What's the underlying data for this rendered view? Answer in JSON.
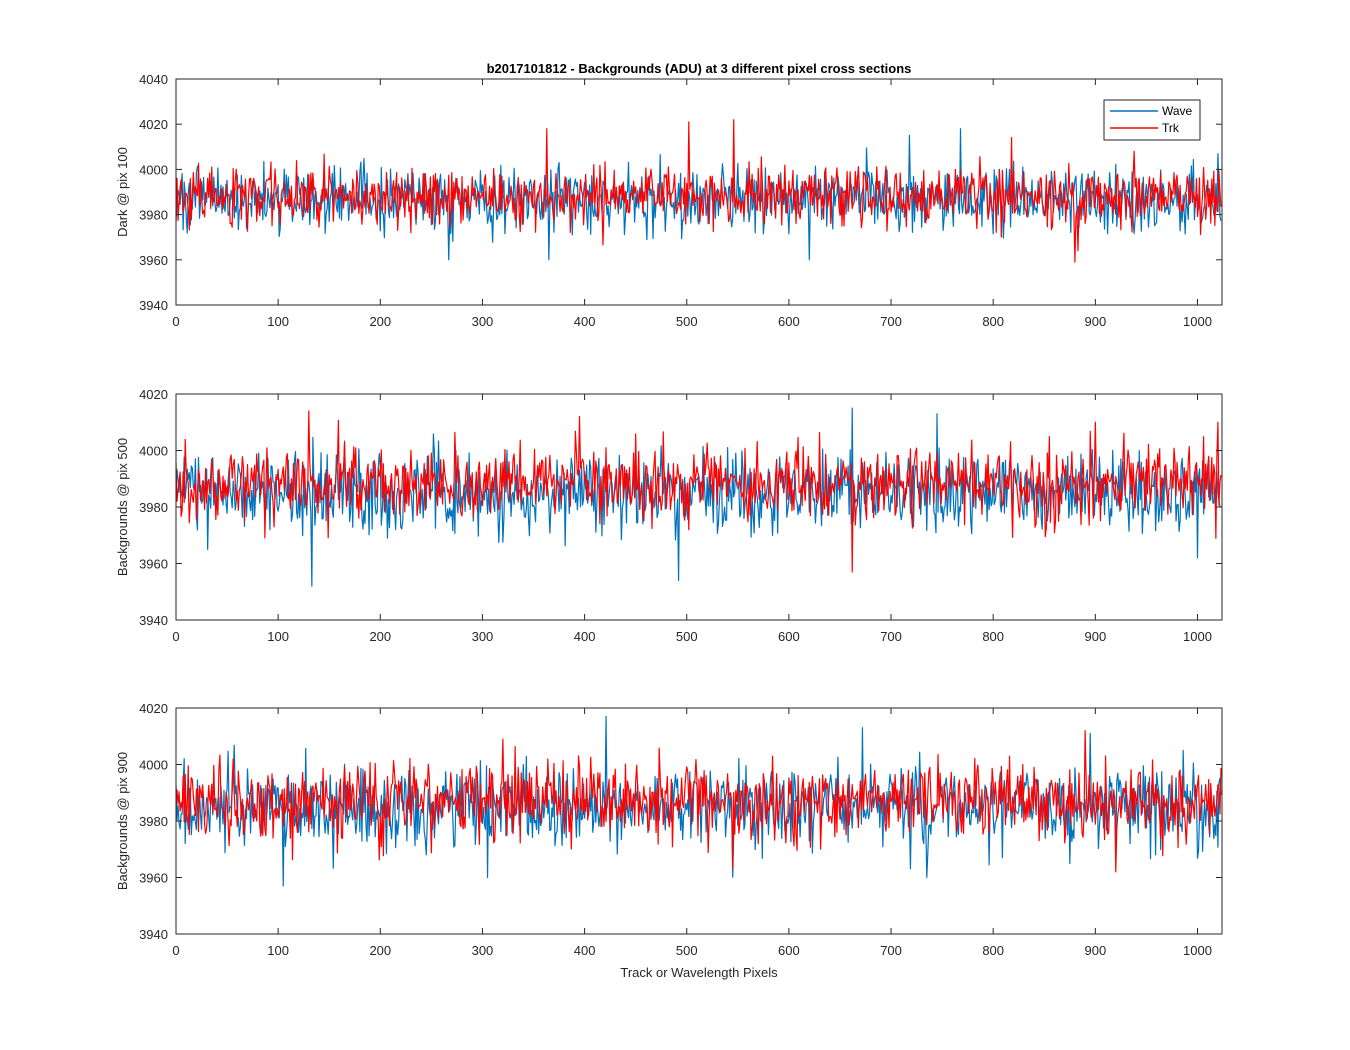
{
  "chart_data": {
    "type": "line",
    "title": "b2017101812 - Backgrounds (ADU) at 3 different pixel cross sections",
    "xlabel": "Track or Wavelength Pixels",
    "xlim": [
      0,
      1024
    ],
    "xticks": [
      0,
      100,
      200,
      300,
      400,
      500,
      600,
      700,
      800,
      900,
      1000
    ],
    "grid": false,
    "legend": {
      "position": "top-right",
      "entries": [
        "Wave",
        "Trk"
      ]
    },
    "colors": {
      "Wave": "#0072bd",
      "Trk": "#ff0000"
    },
    "panels": [
      {
        "ylabel": "Dark @ pix 100",
        "ylim": [
          3940,
          4040
        ],
        "yticks": [
          3940,
          3960,
          3980,
          4000,
          4020,
          4040
        ],
        "series": [
          {
            "name": "Wave",
            "seed": 101,
            "mean": 3987,
            "std": 7,
            "min": 3959,
            "max": 4018,
            "spikes": [
              [
                267,
                3960
              ],
              [
                365,
                3960
              ],
              [
                620,
                3960
              ],
              [
                718,
                4015
              ],
              [
                768,
                4018
              ],
              [
                1020,
                4007
              ]
            ]
          },
          {
            "name": "Trk",
            "seed": 202,
            "mean": 3988,
            "std": 6.5,
            "min": 3959,
            "max": 4022,
            "spikes": [
              [
                363,
                4018
              ],
              [
                502,
                4021
              ],
              [
                546,
                4022
              ],
              [
                880,
                3959
              ],
              [
                938,
                4008
              ]
            ]
          }
        ]
      },
      {
        "ylabel": "Backgrounds @ pix 500",
        "ylim": [
          3940,
          4020
        ],
        "yticks": [
          3940,
          3960,
          3980,
          4000,
          4020
        ],
        "series": [
          {
            "name": "Wave",
            "seed": 303,
            "mean": 3985,
            "std": 7,
            "min": 3952,
            "max": 4015,
            "spikes": [
              [
                133,
                3952
              ],
              [
                492,
                3954
              ],
              [
                662,
                4015
              ],
              [
                745,
                4013
              ],
              [
                1000,
                3962
              ]
            ]
          },
          {
            "name": "Trk",
            "seed": 404,
            "mean": 3988,
            "std": 6.5,
            "min": 3957,
            "max": 4014,
            "spikes": [
              [
                130,
                4014
              ],
              [
                395,
                4012
              ],
              [
                662,
                3957
              ],
              [
                1020,
                4010
              ]
            ]
          }
        ]
      },
      {
        "ylabel": "Backgrounds @ pix 900",
        "ylim": [
          3940,
          4020
        ],
        "yticks": [
          3940,
          3960,
          3980,
          4000,
          4020
        ],
        "series": [
          {
            "name": "Wave",
            "seed": 505,
            "mean": 3985,
            "std": 7,
            "min": 3957,
            "max": 4017,
            "spikes": [
              [
                105,
                3957
              ],
              [
                305,
                3960
              ],
              [
                421,
                4017
              ],
              [
                672,
                4013
              ],
              [
                895,
                4011
              ]
            ]
          },
          {
            "name": "Trk",
            "seed": 606,
            "mean": 3987,
            "std": 6.5,
            "min": 3962,
            "max": 4012,
            "spikes": [
              [
                320,
                4009
              ],
              [
                545,
                3963
              ],
              [
                890,
                4012
              ],
              [
                920,
                3962
              ]
            ]
          }
        ]
      }
    ]
  }
}
